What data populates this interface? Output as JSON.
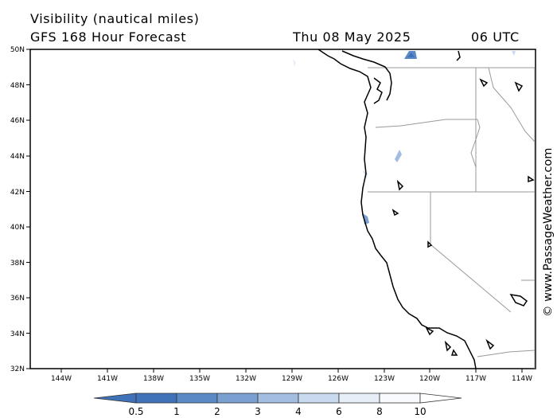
{
  "header": {
    "title_line1": "Visibility (nautical miles)",
    "title_line2": "GFS 168 Hour Forecast",
    "date": "Thu 08 May 2025",
    "time": "06 UTC"
  },
  "map": {
    "lat_labels": [
      "50N",
      "48N",
      "46N",
      "44N",
      "42N",
      "40N",
      "38N",
      "36N",
      "34N",
      "32N"
    ],
    "lon_labels": [
      "144W",
      "141W",
      "138W",
      "135W",
      "132W",
      "129W",
      "126W",
      "123W",
      "120W",
      "117W",
      "114W"
    ]
  },
  "colorbar": {
    "labels": [
      "0.5",
      "1",
      "2",
      "3",
      "4",
      "6",
      "8",
      "10"
    ],
    "colors": [
      "#3f72b8",
      "#5b89c6",
      "#7aa0d2",
      "#a2bde0",
      "#c9d9ee",
      "#e8eef8",
      "#f8fafd"
    ]
  },
  "credit": "© www.PassageWeather.com"
}
